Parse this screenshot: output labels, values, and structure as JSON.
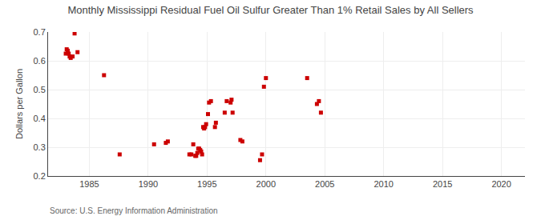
{
  "chart_data": {
    "type": "scatter",
    "title": "Monthly Mississippi Residual Fuel Oil Sulfur Greater Than 1% Retail Sales by All Sellers",
    "ylabel": "Dollars per Gallon",
    "annotations": [
      "Source: U.S. Energy Information Administration"
    ],
    "color": "#cc0000",
    "marker": "square",
    "grid": true,
    "xlim": [
      1981.5,
      2022
    ],
    "ylim": [
      0.2,
      0.7
    ],
    "xticks": [
      1985,
      1990,
      1995,
      2000,
      2005,
      2010,
      2015,
      2020
    ],
    "yticks": [
      0.2,
      0.3,
      0.4,
      0.5,
      0.6,
      0.7
    ],
    "x": [
      1983.0,
      1983.08,
      1983.17,
      1983.25,
      1983.33,
      1983.42,
      1983.58,
      1983.75,
      1984.0,
      1986.25,
      1987.58,
      1990.5,
      1991.5,
      1991.67,
      1993.5,
      1993.67,
      1993.83,
      1994.0,
      1994.08,
      1994.17,
      1994.25,
      1994.33,
      1994.42,
      1994.5,
      1994.58,
      1994.67,
      1994.75,
      1994.83,
      1994.92,
      1995.08,
      1995.17,
      1995.33,
      1995.67,
      1995.75,
      1996.5,
      1996.67,
      1997.0,
      1997.08,
      1997.17,
      1997.83,
      1998.0,
      1999.5,
      1999.67,
      1999.83,
      2000.0,
      2003.5,
      2004.33,
      2004.5,
      2004.67
    ],
    "values": [
      0.625,
      0.64,
      0.635,
      0.625,
      0.615,
      0.61,
      0.615,
      0.695,
      0.63,
      0.55,
      0.275,
      0.31,
      0.315,
      0.32,
      0.275,
      0.275,
      0.31,
      0.27,
      0.27,
      0.28,
      0.295,
      0.295,
      0.29,
      0.285,
      0.275,
      0.37,
      0.365,
      0.37,
      0.38,
      0.415,
      0.455,
      0.46,
      0.37,
      0.385,
      0.42,
      0.46,
      0.455,
      0.465,
      0.42,
      0.325,
      0.32,
      0.255,
      0.275,
      0.51,
      0.54,
      0.54,
      0.45,
      0.46,
      0.42
    ]
  }
}
